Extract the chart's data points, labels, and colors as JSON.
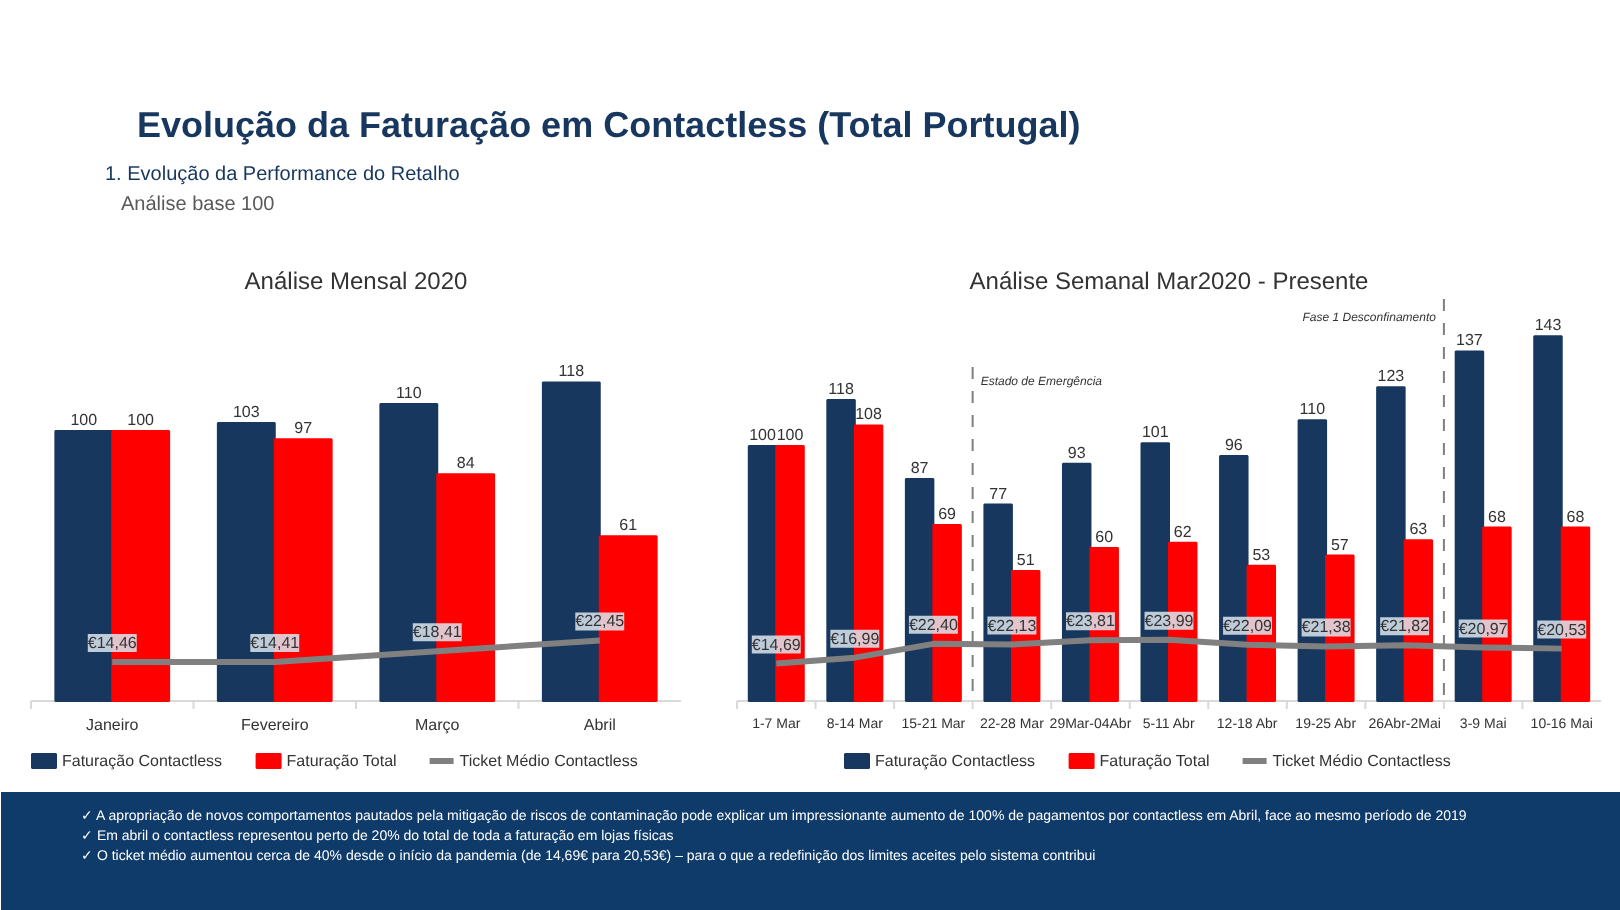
{
  "chart_data": [
    {
      "type": "bar",
      "title": "Análise Mensal 2020",
      "annotations": [
        "Evolução da Faturação em Contactless (Total Portugal)",
        "1.  Evolução da Performance do Retalho",
        "Análise base 100"
      ],
      "categories": [
        "Janeiro",
        "Fevereiro",
        "Março",
        "Abril"
      ],
      "series": [
        {
          "name": "Faturação Contactless",
          "color": "#17375e",
          "values": [
            100,
            103,
            110,
            118
          ]
        },
        {
          "name": "Faturação Total",
          "color": "#ff0000",
          "values": [
            100,
            97,
            84,
            61
          ]
        },
        {
          "name": "Ticket Médio Contactless",
          "type": "line",
          "color": "#808080",
          "values": [
            14.46,
            14.41,
            18.41,
            22.45
          ],
          "value_labels": [
            "€14,46",
            "€14,41",
            "€18,41",
            "€22,45"
          ]
        }
      ],
      "data_labels": true,
      "tick_labels": "x",
      "legend": "bottom",
      "marker": "none",
      "line_style": "solid"
    },
    {
      "type": "bar",
      "title": "Análise Semanal Mar2020 - Presente",
      "annotations": [
        "Estado de Emergência",
        "Fase 1 Desconfinamento",
        "✓ A apropriação de novos comportamentos pautados pela mitigação de riscos de contaminação pode explicar um impressionante aumento de 100% de pagamentos por contactless em Abril, face ao mesmo período de 2019",
        "✓ Em abril o contactless representou perto de 20% do total de toda a faturação em lojas físicas",
        "✓ O ticket médio aumentou cerca de 40% desde o início da pandemia (de 14,69€ para 20,53€) – para o que a redefinição dos limites aceites pelo sistema contribui"
      ],
      "categories": [
        "1-7 Mar",
        "8-14 Mar",
        "15-21 Mar",
        "22-28 Mar",
        "29Mar-04Abr",
        "5-11 Abr",
        "12-18 Abr",
        "19-25 Abr",
        "26Abr-2Mai",
        "3-9 Mai",
        "10-16 Mai"
      ],
      "series": [
        {
          "name": "Faturação Contactless",
          "color": "#17375e",
          "values": [
            100,
            118,
            87,
            77,
            93,
            101,
            96,
            110,
            123,
            137,
            143
          ]
        },
        {
          "name": "Faturação Total",
          "color": "#ff0000",
          "values": [
            100,
            108,
            69,
            51,
            60,
            62,
            53,
            57,
            63,
            68,
            68
          ]
        },
        {
          "name": "Ticket Médio Contactless",
          "type": "line",
          "color": "#808080",
          "values": [
            14.69,
            16.99,
            22.4,
            22.13,
            23.81,
            23.99,
            22.09,
            21.38,
            21.82,
            20.97,
            20.53
          ],
          "value_labels": [
            "€14,69",
            "€16,99",
            "€22,40",
            "€22,13",
            "€23,81",
            "€23,99",
            "€22,09",
            "€21,38",
            "€21,82",
            "€20,97",
            "€20,53"
          ]
        }
      ],
      "data_labels": true,
      "tick_labels": "x",
      "legend": "bottom",
      "marker": "none",
      "line_style": "solid"
    }
  ]
}
